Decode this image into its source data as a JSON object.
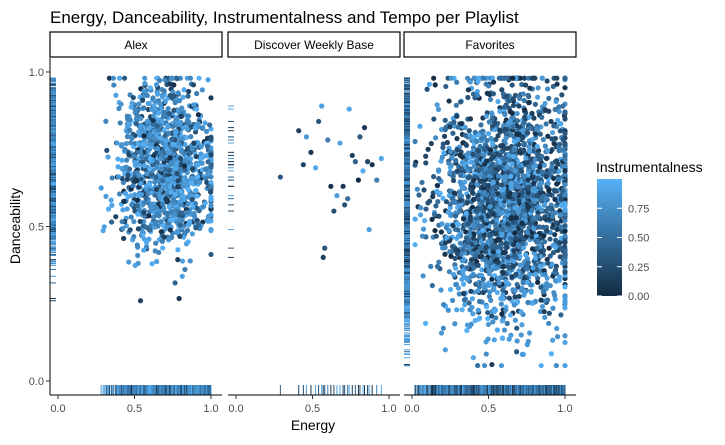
{
  "chart_data": {
    "type": "scatter",
    "title": "Energy, Danceability, Instrumentalness and Tempo per Playlist",
    "xlabel": "Energy",
    "ylabel": "Danceability",
    "xlim": [
      0,
      1
    ],
    "ylim": [
      0,
      1
    ],
    "x_ticks": [
      0.0,
      0.5,
      1.0
    ],
    "x_tick_labels": [
      "0.0",
      "0.5",
      "1.0"
    ],
    "y_ticks": [
      0.0,
      0.5,
      1.0
    ],
    "y_tick_labels": [
      "0.0",
      "0.5",
      "1.0"
    ],
    "grid": false,
    "rug": true,
    "facets": [
      {
        "label": "Alex",
        "approx_points": 1200,
        "energy_center": 0.7,
        "energy_spread": 0.16,
        "energy_range": [
          0.02,
          1.0
        ],
        "danceability_center": 0.7,
        "danceability_spread": 0.14,
        "danceability_range": [
          0.1,
          0.98
        ],
        "instrumentalness_profile": "mostly high"
      },
      {
        "label": "Discover Weekly Base",
        "points": [
          {
            "x": 0.29,
            "y": 0.66,
            "i": 0.35
          },
          {
            "x": 0.41,
            "y": 0.81,
            "i": 0.15
          },
          {
            "x": 0.44,
            "y": 0.7,
            "i": 0.2
          },
          {
            "x": 0.46,
            "y": 0.79,
            "i": 0.8
          },
          {
            "x": 0.49,
            "y": 0.74,
            "i": 0.1
          },
          {
            "x": 0.52,
            "y": 0.69,
            "i": 0.9
          },
          {
            "x": 0.54,
            "y": 0.84,
            "i": 0.3
          },
          {
            "x": 0.56,
            "y": 0.89,
            "i": 0.85
          },
          {
            "x": 0.57,
            "y": 0.4,
            "i": 0.15
          },
          {
            "x": 0.58,
            "y": 0.43,
            "i": 0.3
          },
          {
            "x": 0.6,
            "y": 0.78,
            "i": 0.6
          },
          {
            "x": 0.62,
            "y": 0.63,
            "i": 0.05
          },
          {
            "x": 0.64,
            "y": 0.55,
            "i": 0.25
          },
          {
            "x": 0.66,
            "y": 0.6,
            "i": 0.85
          },
          {
            "x": 0.68,
            "y": 0.77,
            "i": 0.9
          },
          {
            "x": 0.7,
            "y": 0.63,
            "i": 0.1
          },
          {
            "x": 0.71,
            "y": 0.57,
            "i": 0.3
          },
          {
            "x": 0.73,
            "y": 0.59,
            "i": 0.5
          },
          {
            "x": 0.74,
            "y": 0.88,
            "i": 0.9
          },
          {
            "x": 0.76,
            "y": 0.73,
            "i": 0.15
          },
          {
            "x": 0.78,
            "y": 0.71,
            "i": 0.4
          },
          {
            "x": 0.8,
            "y": 0.65,
            "i": 0.0
          },
          {
            "x": 0.81,
            "y": 0.79,
            "i": 0.35
          },
          {
            "x": 0.83,
            "y": 0.68,
            "i": 0.95
          },
          {
            "x": 0.84,
            "y": 0.82,
            "i": 0.1
          },
          {
            "x": 0.86,
            "y": 0.71,
            "i": 0.2
          },
          {
            "x": 0.87,
            "y": 0.49,
            "i": 0.85
          },
          {
            "x": 0.89,
            "y": 0.7,
            "i": 0.05
          },
          {
            "x": 0.92,
            "y": 0.65,
            "i": 0.6
          },
          {
            "x": 0.95,
            "y": 0.72,
            "i": 0.9
          }
        ]
      },
      {
        "label": "Favorites",
        "approx_points": 2300,
        "energy_center": 0.62,
        "energy_spread": 0.23,
        "energy_range": [
          0.02,
          1.0
        ],
        "danceability_center": 0.58,
        "danceability_spread": 0.19,
        "danceability_range": [
          0.05,
          0.98
        ],
        "instrumentalness_profile": "mixed"
      }
    ],
    "legend": {
      "title": "Instrumentalness",
      "type": "colorbar",
      "placement": "right",
      "range": [
        0,
        1
      ],
      "ticks": [
        0.0,
        0.25,
        0.5,
        0.75
      ],
      "tick_labels": [
        "0.00",
        "0.25",
        "0.50",
        "0.75"
      ],
      "low_color": "#132B43",
      "high_color": "#56B1F7"
    }
  }
}
